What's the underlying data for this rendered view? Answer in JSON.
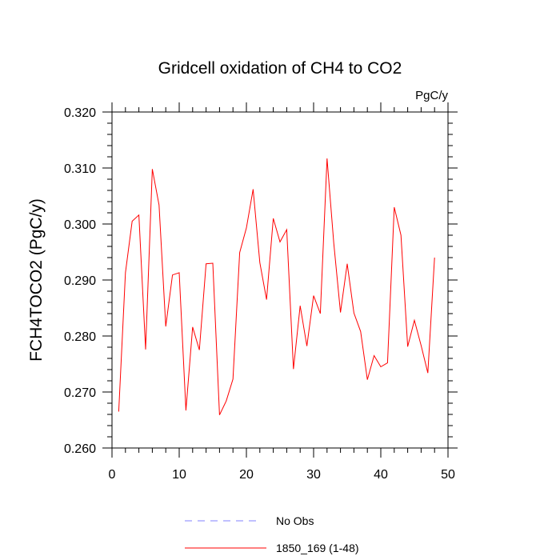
{
  "chart_data": {
    "type": "line",
    "title": "Gridcell oxidation of CH4 to CO2",
    "units": "PgC/y",
    "ylabel": "FCH4TOCO2  (PgC/y)",
    "xlim": [
      0,
      50
    ],
    "ylim": [
      0.26,
      0.32
    ],
    "xticks": [
      "0",
      "10",
      "20",
      "30",
      "40",
      "50"
    ],
    "yticks": [
      "0.260",
      "0.270",
      "0.280",
      "0.290",
      "0.300",
      "0.310",
      "0.320"
    ],
    "grid": false,
    "legend_placement": "bottom-center",
    "series": [
      {
        "name": "1850_169 (1-48)",
        "color": "#ff0000",
        "x": [
          1,
          2,
          3,
          4,
          5,
          6,
          7,
          8,
          9,
          10,
          11,
          12,
          13,
          14,
          15,
          16,
          17,
          18,
          19,
          20,
          21,
          22,
          23,
          24,
          25,
          26,
          27,
          28,
          29,
          30,
          31,
          32,
          33,
          34,
          35,
          36,
          37,
          38,
          39,
          40,
          41,
          42,
          43,
          44,
          45,
          46,
          47,
          48
        ],
        "y": [
          0.2665,
          0.2913,
          0.3005,
          0.3016,
          0.2776,
          0.3098,
          0.3034,
          0.2817,
          0.2909,
          0.2913,
          0.2667,
          0.2816,
          0.2775,
          0.2929,
          0.293,
          0.2659,
          0.2684,
          0.2723,
          0.2949,
          0.2993,
          0.3062,
          0.2931,
          0.2865,
          0.301,
          0.2968,
          0.299,
          0.2741,
          0.2854,
          0.2782,
          0.2872,
          0.284,
          0.3117,
          0.2966,
          0.2842,
          0.2929,
          0.2841,
          0.2808,
          0.2722,
          0.2765,
          0.2745,
          0.2752,
          0.303,
          0.298,
          0.2781,
          0.2828,
          0.2783,
          0.2734,
          0.294
        ]
      }
    ],
    "legend": [
      {
        "name": "No Obs",
        "color": "#8080ff",
        "dash": true
      },
      {
        "name": "1850_169 (1-48)",
        "color": "#ff0000",
        "dash": false
      }
    ]
  }
}
